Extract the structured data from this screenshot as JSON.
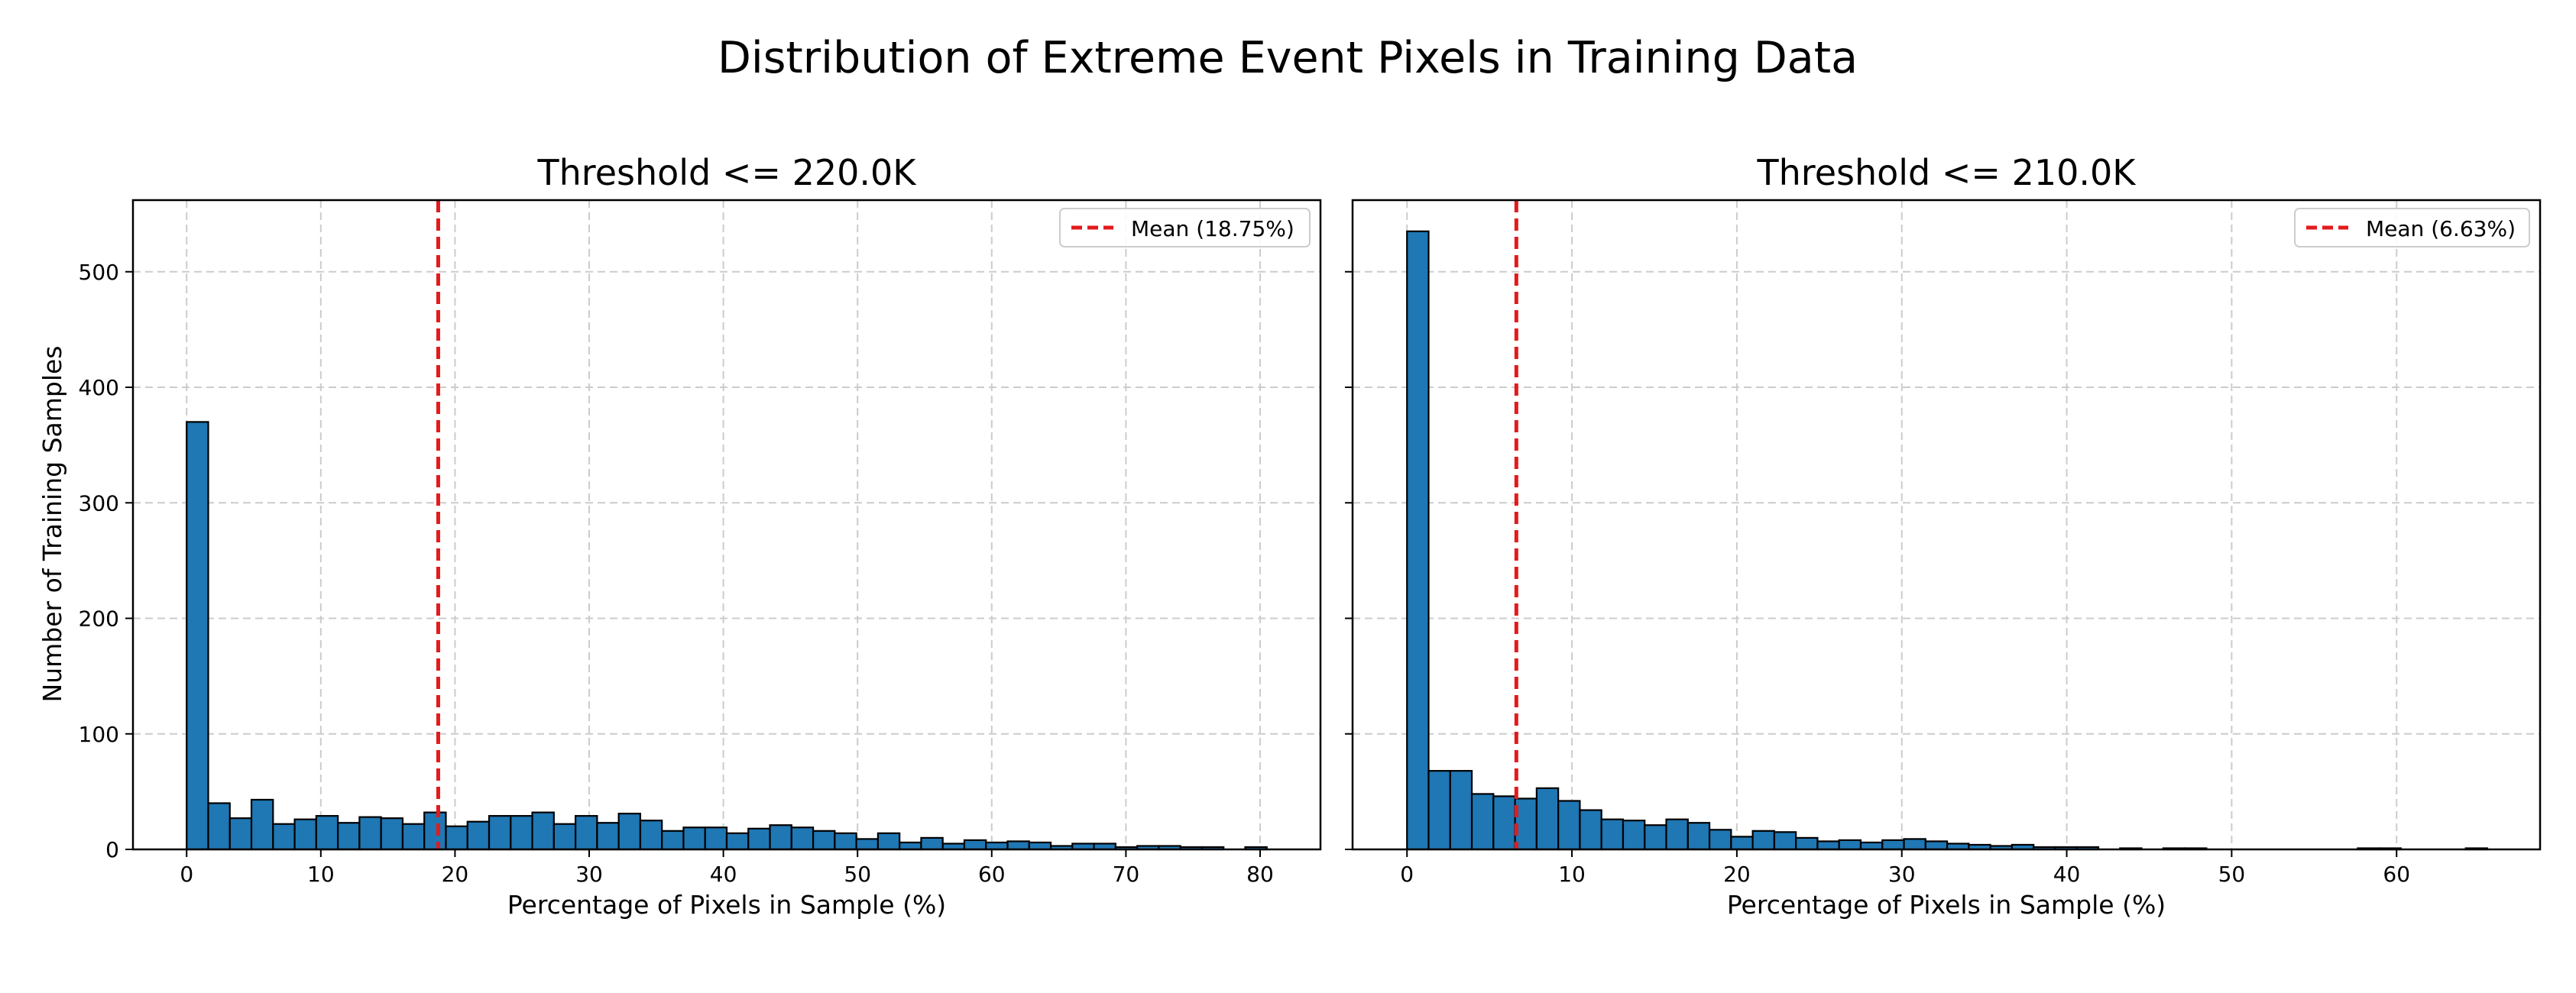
{
  "figure": {
    "title": "Distribution of Extreme Event Pixels in Training Data",
    "ylabel": "Number of Training Samples"
  },
  "chart_data": [
    {
      "type": "bar",
      "subtype": "histogram",
      "title": "Threshold <= 220.0K",
      "xlabel": "Percentage of Pixels in Sample (%)",
      "ylabel": "Number of Training Samples",
      "xlim": [
        -4,
        84.5
      ],
      "ylim": [
        0,
        562
      ],
      "xticks": [
        0,
        10,
        20,
        30,
        40,
        50,
        60,
        70,
        80
      ],
      "yticks": [
        0,
        100,
        200,
        300,
        400,
        500
      ],
      "grid": true,
      "bin_start": 0,
      "bin_width": 1.61,
      "counts": [
        370,
        40,
        27,
        43,
        22,
        26,
        29,
        23,
        28,
        27,
        22,
        32,
        20,
        24,
        29,
        29,
        32,
        22,
        29,
        23,
        31,
        25,
        16,
        19,
        19,
        14,
        18,
        21,
        19,
        16,
        14,
        9,
        14,
        6,
        10,
        5,
        8,
        6,
        7,
        6,
        3,
        5,
        5,
        2,
        3,
        3,
        2,
        2,
        0,
        2
      ],
      "mean_line": {
        "x": 18.75,
        "label": "Mean (18.75%)",
        "color": "#e41a1c"
      },
      "legend_position": "top-right",
      "bar_color": "#1f77b4"
    },
    {
      "type": "bar",
      "subtype": "histogram",
      "title": "Threshold <= 210.0K",
      "xlabel": "Percentage of Pixels in Sample (%)",
      "ylabel": "",
      "xlim": [
        -3.3,
        68.7
      ],
      "ylim": [
        0,
        562
      ],
      "xticks": [
        0,
        10,
        20,
        30,
        40,
        50,
        60
      ],
      "yticks": [
        0,
        100,
        200,
        300,
        400,
        500
      ],
      "grid": true,
      "bin_start": 0,
      "bin_width": 1.31,
      "counts": [
        535,
        68,
        68,
        48,
        46,
        44,
        53,
        42,
        34,
        26,
        25,
        21,
        26,
        23,
        17,
        11,
        16,
        15,
        10,
        7,
        8,
        6,
        8,
        9,
        7,
        5,
        4,
        3,
        4,
        2,
        2,
        2,
        0,
        1,
        0,
        1,
        1,
        0,
        0,
        0,
        0,
        0,
        0,
        0,
        1,
        1,
        0,
        0,
        0,
        1
      ],
      "mean_line": {
        "x": 6.63,
        "label": "Mean (6.63%)",
        "color": "#e41a1c"
      },
      "legend_position": "top-right",
      "bar_color": "#1f77b4"
    }
  ]
}
